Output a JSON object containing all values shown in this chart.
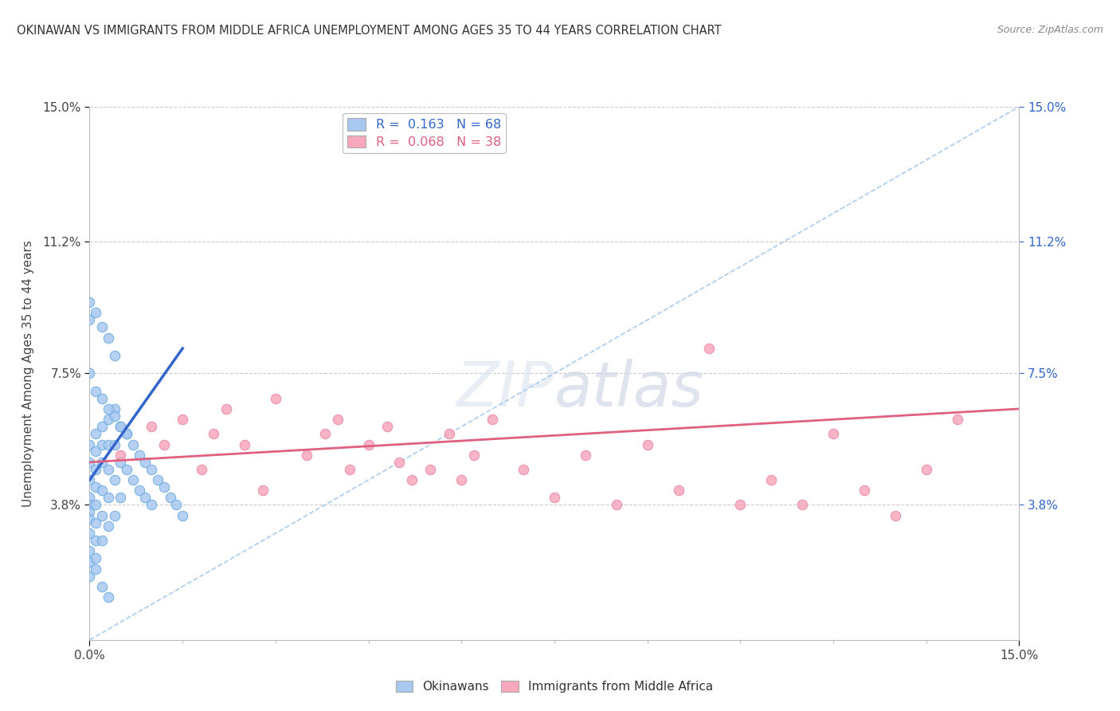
{
  "title": "OKINAWAN VS IMMIGRANTS FROM MIDDLE AFRICA UNEMPLOYMENT AMONG AGES 35 TO 44 YEARS CORRELATION CHART",
  "source": "Source: ZipAtlas.com",
  "ylabel": "Unemployment Among Ages 35 to 44 years",
  "xlim": [
    0.0,
    0.15
  ],
  "ylim": [
    0.0,
    0.15
  ],
  "ytick_vals": [
    0.038,
    0.075,
    0.112,
    0.15
  ],
  "ytick_labels": [
    "3.8%",
    "7.5%",
    "11.2%",
    "15.0%"
  ],
  "okinawan_color": "#a8c8f0",
  "okinawan_edge": "#6aaae0",
  "immigrant_color": "#f8a8bc",
  "immigrant_edge": "#e888a8",
  "trend_okinawan_color": "#3366cc",
  "trend_immigrant_color": "#e06080",
  "ref_line_color": "#aaccee",
  "grid_color": "#cccccc",
  "background_color": "#ffffff",
  "ok_seed": 77,
  "imm_seed": 33,
  "okinawan_x": [
    0.0,
    0.0,
    0.0,
    0.0,
    0.0,
    0.0,
    0.0,
    0.0,
    0.0,
    0.0,
    0.001,
    0.001,
    0.001,
    0.001,
    0.001,
    0.001,
    0.001,
    0.001,
    0.002,
    0.002,
    0.002,
    0.002,
    0.002,
    0.002,
    0.003,
    0.003,
    0.003,
    0.003,
    0.003,
    0.004,
    0.004,
    0.004,
    0.004,
    0.005,
    0.005,
    0.005,
    0.006,
    0.006,
    0.007,
    0.007,
    0.008,
    0.008,
    0.009,
    0.009,
    0.01,
    0.01,
    0.011,
    0.012,
    0.013,
    0.014,
    0.015,
    0.0,
    0.0,
    0.0,
    0.001,
    0.001,
    0.002,
    0.002,
    0.003,
    0.003,
    0.004,
    0.0,
    0.001,
    0.002,
    0.003,
    0.004,
    0.005,
    0.006
  ],
  "okinawan_y": [
    0.055,
    0.05,
    0.045,
    0.04,
    0.038,
    0.036,
    0.034,
    0.03,
    0.025,
    0.022,
    0.058,
    0.053,
    0.048,
    0.043,
    0.038,
    0.033,
    0.028,
    0.023,
    0.06,
    0.055,
    0.05,
    0.042,
    0.035,
    0.028,
    0.062,
    0.055,
    0.048,
    0.04,
    0.032,
    0.065,
    0.055,
    0.045,
    0.035,
    0.06,
    0.05,
    0.04,
    0.058,
    0.048,
    0.055,
    0.045,
    0.052,
    0.042,
    0.05,
    0.04,
    0.048,
    0.038,
    0.045,
    0.043,
    0.04,
    0.038,
    0.035,
    0.09,
    0.095,
    0.018,
    0.092,
    0.02,
    0.088,
    0.015,
    0.085,
    0.012,
    0.08,
    0.075,
    0.07,
    0.068,
    0.065,
    0.063,
    0.06,
    0.058
  ],
  "immigrant_x": [
    0.005,
    0.01,
    0.012,
    0.015,
    0.018,
    0.02,
    0.022,
    0.025,
    0.028,
    0.03,
    0.035,
    0.038,
    0.04,
    0.042,
    0.045,
    0.048,
    0.05,
    0.052,
    0.055,
    0.058,
    0.06,
    0.062,
    0.065,
    0.07,
    0.075,
    0.08,
    0.085,
    0.09,
    0.095,
    0.1,
    0.105,
    0.11,
    0.115,
    0.12,
    0.125,
    0.13,
    0.135,
    0.14
  ],
  "immigrant_y": [
    0.052,
    0.06,
    0.055,
    0.062,
    0.048,
    0.058,
    0.065,
    0.055,
    0.042,
    0.068,
    0.052,
    0.058,
    0.062,
    0.048,
    0.055,
    0.06,
    0.05,
    0.045,
    0.048,
    0.058,
    0.045,
    0.052,
    0.062,
    0.048,
    0.04,
    0.052,
    0.038,
    0.055,
    0.042,
    0.082,
    0.038,
    0.045,
    0.038,
    0.058,
    0.042,
    0.035,
    0.048,
    0.062
  ]
}
